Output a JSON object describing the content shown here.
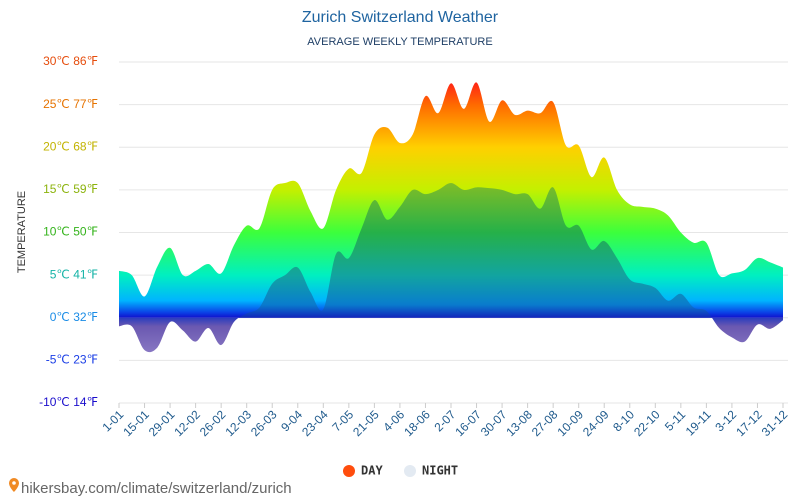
{
  "chart_data": {
    "type": "area",
    "title": "Zurich Switzerland Weather",
    "subtitle": "AVERAGE WEEKLY TEMPERATURE",
    "y_label": "TEMPERATURE",
    "source": "hikersbay.com/climate/switzerland/zurich",
    "categories": [
      "1-01",
      null,
      "15-01",
      null,
      "29-01",
      null,
      "12-02",
      null,
      "26-02",
      null,
      "12-03",
      null,
      "26-03",
      null,
      "9-04",
      null,
      "23-04",
      null,
      "7-05",
      null,
      "21-05",
      null,
      "4-06",
      null,
      "18-06",
      null,
      "2-07",
      null,
      "16-07",
      null,
      "30-07",
      null,
      "13-08",
      null,
      "27-08",
      null,
      "10-09",
      null,
      "24-09",
      null,
      "8-10",
      null,
      "22-10",
      null,
      "5-11",
      null,
      "19-11",
      null,
      "3-12",
      null,
      "17-12",
      null,
      "31-12"
    ],
    "series": [
      {
        "name": "DAY",
        "color": "#ff4d0d",
        "values": [
          5.5,
          5.0,
          2.5,
          6.0,
          8.2,
          5.0,
          5.5,
          6.3,
          5.2,
          8.5,
          10.8,
          10.5,
          15.0,
          15.8,
          15.8,
          12.5,
          10.5,
          15.0,
          17.5,
          17.0,
          21.5,
          22.3,
          20.5,
          21.5,
          26.0,
          24.0,
          27.5,
          24.5,
          27.6,
          23.0,
          25.5,
          23.8,
          24.3,
          24.0,
          25.3,
          20.2,
          20.2,
          16.5,
          18.8,
          15.0,
          13.3,
          13.0,
          12.8,
          12.0,
          10.0,
          8.8,
          8.8,
          5.0,
          5.2,
          5.6,
          7.0,
          6.5,
          5.9
        ]
      },
      {
        "name": "NIGHT",
        "color": "#e3eaf2",
        "values": [
          -1.0,
          -1.0,
          -3.8,
          -3.5,
          -0.5,
          -1.5,
          -2.8,
          -1.2,
          -3.2,
          -0.5,
          0.5,
          1.2,
          4.0,
          5.0,
          5.9,
          3.0,
          1.0,
          7.5,
          7.0,
          10.5,
          13.8,
          11.5,
          13.0,
          15.0,
          14.5,
          15.0,
          15.8,
          15.0,
          15.3,
          15.2,
          15.0,
          14.5,
          14.5,
          12.8,
          15.3,
          10.8,
          10.8,
          8.0,
          9.0,
          7.0,
          4.5,
          4.0,
          3.5,
          2.0,
          2.8,
          1.2,
          0.8,
          -1.2,
          -2.3,
          -2.8,
          -0.8,
          -1.3,
          -0.3
        ]
      }
    ],
    "ylim": [
      -10,
      30
    ],
    "yticks": [
      {
        "value": -10,
        "label": "-10℃ 14℉"
      },
      {
        "value": -5,
        "label": "-5℃ 23℉"
      },
      {
        "value": 0,
        "label": "0℃ 32℉"
      },
      {
        "value": 5,
        "label": "5℃ 41℉"
      },
      {
        "value": 10,
        "label": "10℃ 50℉"
      },
      {
        "value": 15,
        "label": "15℃ 59℉"
      },
      {
        "value": 20,
        "label": "20℃ 68℉"
      },
      {
        "value": 25,
        "label": "25℃ 77℉"
      },
      {
        "value": 30,
        "label": "30℃ 86℉"
      }
    ],
    "ytick_colors": [
      "#1a0dcc",
      "#1a3ee6",
      "#1a8ce6",
      "#14b3a6",
      "#33b31a",
      "#8cb30d",
      "#c2b300",
      "#e67300",
      "#e64d0d"
    ],
    "grid": true
  }
}
